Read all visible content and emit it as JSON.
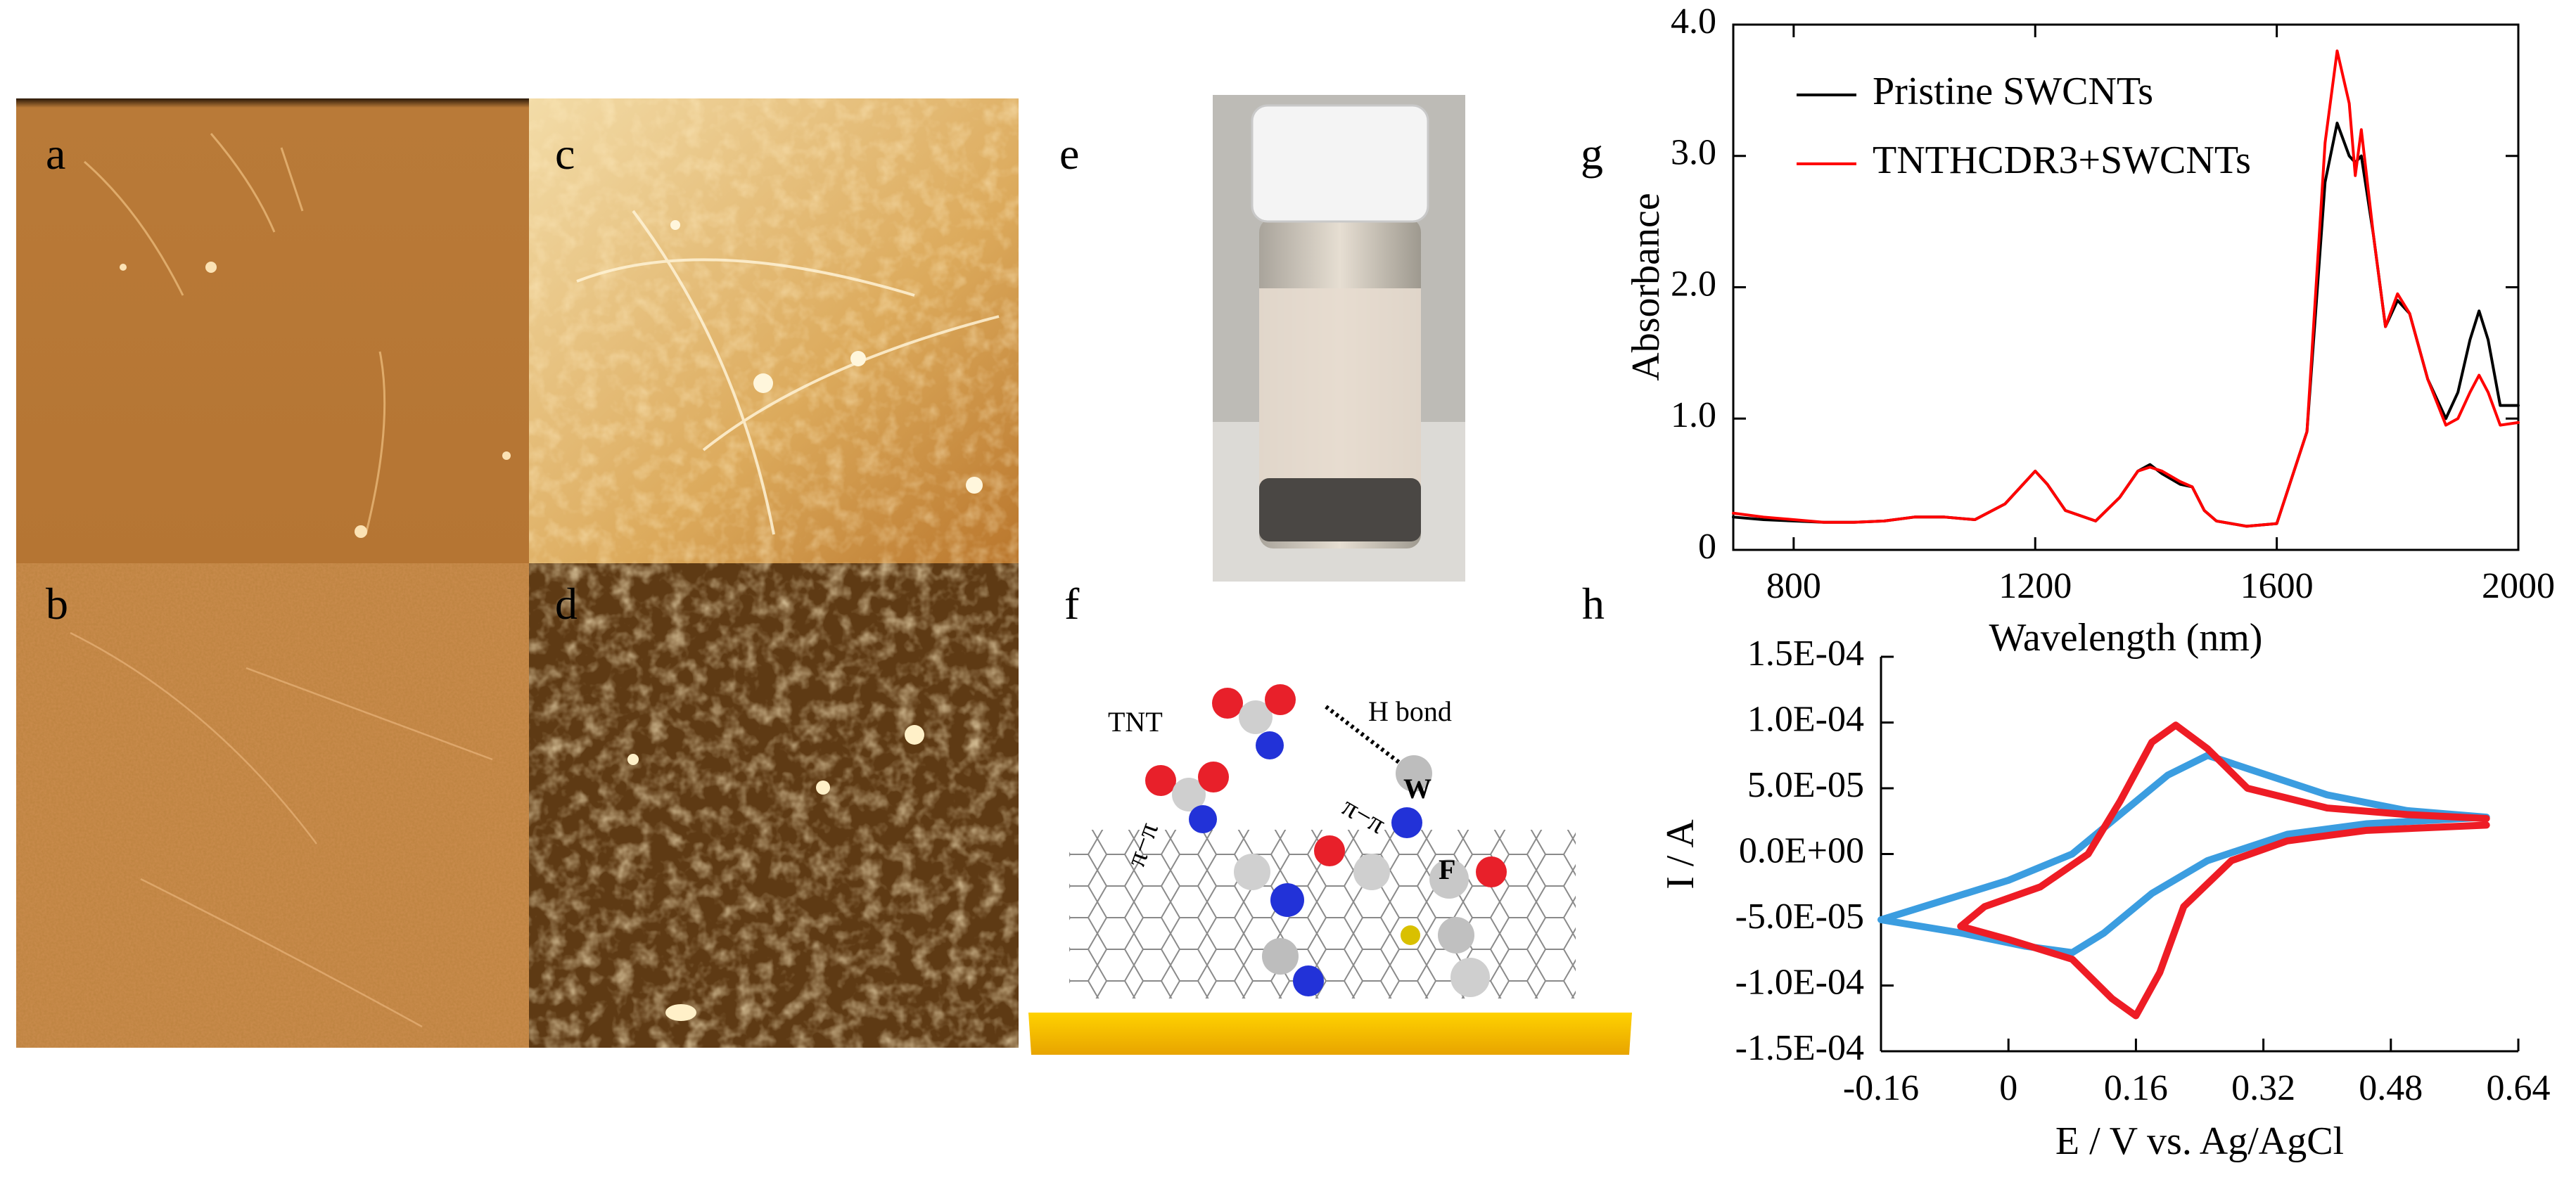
{
  "panel_labels": [
    "a",
    "b",
    "c",
    "d",
    "e",
    "f",
    "g",
    "h"
  ],
  "diagram": {
    "labels": [
      "TNT",
      "H bond",
      "π−π",
      "π−π",
      "W",
      "F"
    ]
  },
  "chart_data": [
    {
      "type": "line",
      "x_label": "Wavelength (nm)",
      "y_label": "Absorbance",
      "x": [
        700,
        750,
        800,
        850,
        900,
        950,
        1000,
        1050,
        1100,
        1150,
        1180,
        1200,
        1220,
        1250,
        1300,
        1340,
        1370,
        1390,
        1410,
        1440,
        1460,
        1480,
        1500,
        1550,
        1600,
        1650,
        1680,
        1700,
        1720,
        1730,
        1740,
        1760,
        1780,
        1800,
        1820,
        1850,
        1880,
        1900,
        1920,
        1935,
        1950,
        1970,
        2000
      ],
      "series": [
        {
          "name": "Pristine SWCNTs",
          "color": "#000000",
          "values": [
            0.25,
            0.23,
            0.22,
            0.21,
            0.21,
            0.22,
            0.25,
            0.25,
            0.23,
            0.35,
            0.5,
            0.6,
            0.5,
            0.3,
            0.22,
            0.4,
            0.6,
            0.65,
            0.58,
            0.5,
            0.48,
            0.3,
            0.22,
            0.18,
            0.2,
            0.9,
            2.8,
            3.25,
            3.0,
            2.95,
            3.0,
            2.4,
            1.7,
            1.9,
            1.8,
            1.3,
            1.0,
            1.2,
            1.6,
            1.82,
            1.6,
            1.1,
            1.1
          ]
        },
        {
          "name": "TNTHCDR3+SWCNTs",
          "color": "#ff0000",
          "values": [
            0.28,
            0.25,
            0.23,
            0.21,
            0.21,
            0.22,
            0.25,
            0.25,
            0.23,
            0.35,
            0.5,
            0.6,
            0.5,
            0.3,
            0.22,
            0.4,
            0.6,
            0.63,
            0.6,
            0.52,
            0.48,
            0.3,
            0.22,
            0.18,
            0.2,
            0.9,
            3.1,
            3.8,
            3.4,
            2.85,
            3.2,
            2.4,
            1.7,
            1.95,
            1.8,
            1.3,
            0.95,
            1.0,
            1.2,
            1.33,
            1.2,
            0.95,
            0.97
          ]
        }
      ],
      "xlim": [
        700,
        2000
      ],
      "xticks": [
        800,
        1200,
        1600,
        2000
      ],
      "ylim": [
        0,
        4
      ],
      "yticks": [
        0,
        {
          "value": 1,
          "label": "1.0"
        },
        {
          "value": 2,
          "label": "2.0"
        },
        {
          "value": 3,
          "label": "3.0"
        },
        {
          "value": 4,
          "label": "4.0"
        }
      ],
      "legend": "upper left"
    },
    {
      "type": "line",
      "x_label": "E / V vs. Ag/AgCl",
      "y_label": "I / A",
      "series": [
        {
          "color": "#3b9de0",
          "x": [
            0.6,
            0.45,
            0.35,
            0.25,
            0.18,
            0.12,
            0.08,
            0.02,
            -0.06,
            -0.16,
            -0.08,
            0.0,
            0.08,
            0.14,
            0.2,
            0.25,
            0.3,
            0.4,
            0.5,
            0.6
          ],
          "values": [
            2.8e-05,
            2.3e-05,
            1.5e-05,
            -5e-06,
            -3e-05,
            -6e-05,
            -7.5e-05,
            -7e-05,
            -6e-05,
            -5e-05,
            -3.5e-05,
            -2e-05,
            0,
            3e-05,
            6e-05,
            7.5e-05,
            6.5e-05,
            4.5e-05,
            3.3e-05,
            2.8e-05
          ]
        },
        {
          "color": "#ee1c25",
          "x": [
            0.6,
            0.45,
            0.35,
            0.28,
            0.22,
            0.19,
            0.16,
            0.13,
            0.08,
            0.0,
            -0.06,
            -0.03,
            0.04,
            0.1,
            0.14,
            0.18,
            0.21,
            0.25,
            0.3,
            0.4,
            0.5,
            0.6
          ],
          "values": [
            2.2e-05,
            1.8e-05,
            1e-05,
            -5e-06,
            -4e-05,
            -9e-05,
            -0.000123,
            -0.00011,
            -8e-05,
            -6.5e-05,
            -5.5e-05,
            -4e-05,
            -2.5e-05,
            0,
            4e-05,
            8.5e-05,
            9.8e-05,
            8e-05,
            5e-05,
            3.5e-05,
            3e-05,
            2.7e-05
          ]
        }
      ],
      "xlim": [
        -0.16,
        0.64
      ],
      "xticks": [
        -0.16,
        0,
        0.16,
        0.32,
        0.48,
        0.64
      ],
      "ylim": [
        -0.00015,
        0.00015
      ],
      "yticks": [
        {
          "value": -0.00015,
          "label": "-1.5E-04"
        },
        {
          "value": -0.0001,
          "label": "-1.0E-04"
        },
        {
          "value": -5e-05,
          "label": "-5.0E-05"
        },
        {
          "value": 0,
          "label": "0.0E+00"
        },
        {
          "value": 5e-05,
          "label": "5.0E-05"
        },
        {
          "value": 0.0001,
          "label": "1.0E-04"
        },
        {
          "value": 0.00015,
          "label": "1.5E-04"
        }
      ]
    }
  ]
}
